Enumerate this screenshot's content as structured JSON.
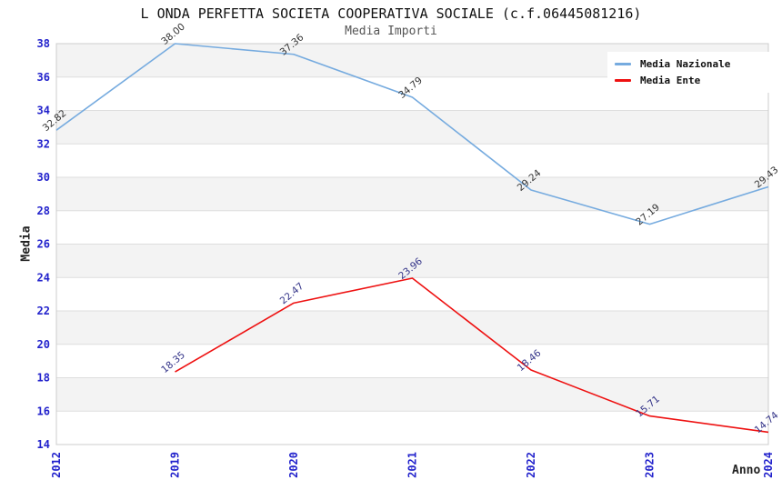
{
  "title": "L ONDA PERFETTA SOCIETA COOPERATIVA SOCIALE (c.f.06445081216)",
  "subtitle": "Media Importi",
  "chart_data": {
    "type": "line",
    "x": [
      "2012",
      "2019",
      "2020",
      "2021",
      "2022",
      "2023",
      "2024"
    ],
    "series": [
      {
        "name": "Media Nazionale",
        "color": "#76abdf",
        "label_color": "#333333",
        "values": [
          32.82,
          38.0,
          37.36,
          34.79,
          29.24,
          27.19,
          29.43
        ]
      },
      {
        "name": "Media Ente",
        "color": "#ee1111",
        "label_color": "#333388",
        "values": [
          null,
          18.35,
          22.47,
          23.96,
          18.46,
          15.71,
          14.74
        ]
      }
    ],
    "xlabel": "Anno",
    "ylabel": "Media",
    "ylim": [
      14,
      38
    ],
    "yticks": [
      14,
      16,
      18,
      20,
      22,
      24,
      26,
      28,
      30,
      32,
      34,
      36,
      38
    ],
    "ytick_step": 2,
    "grid": "horizontal",
    "band_fill": "alternating-gray",
    "legend_position": "top-right",
    "tick_label_color": "#2222cc",
    "data_label_rotation": -40
  },
  "legend": {
    "items": [
      {
        "label": "Media Nazionale",
        "color": "#76abdf"
      },
      {
        "label": "Media Ente",
        "color": "#ee1111"
      }
    ]
  }
}
